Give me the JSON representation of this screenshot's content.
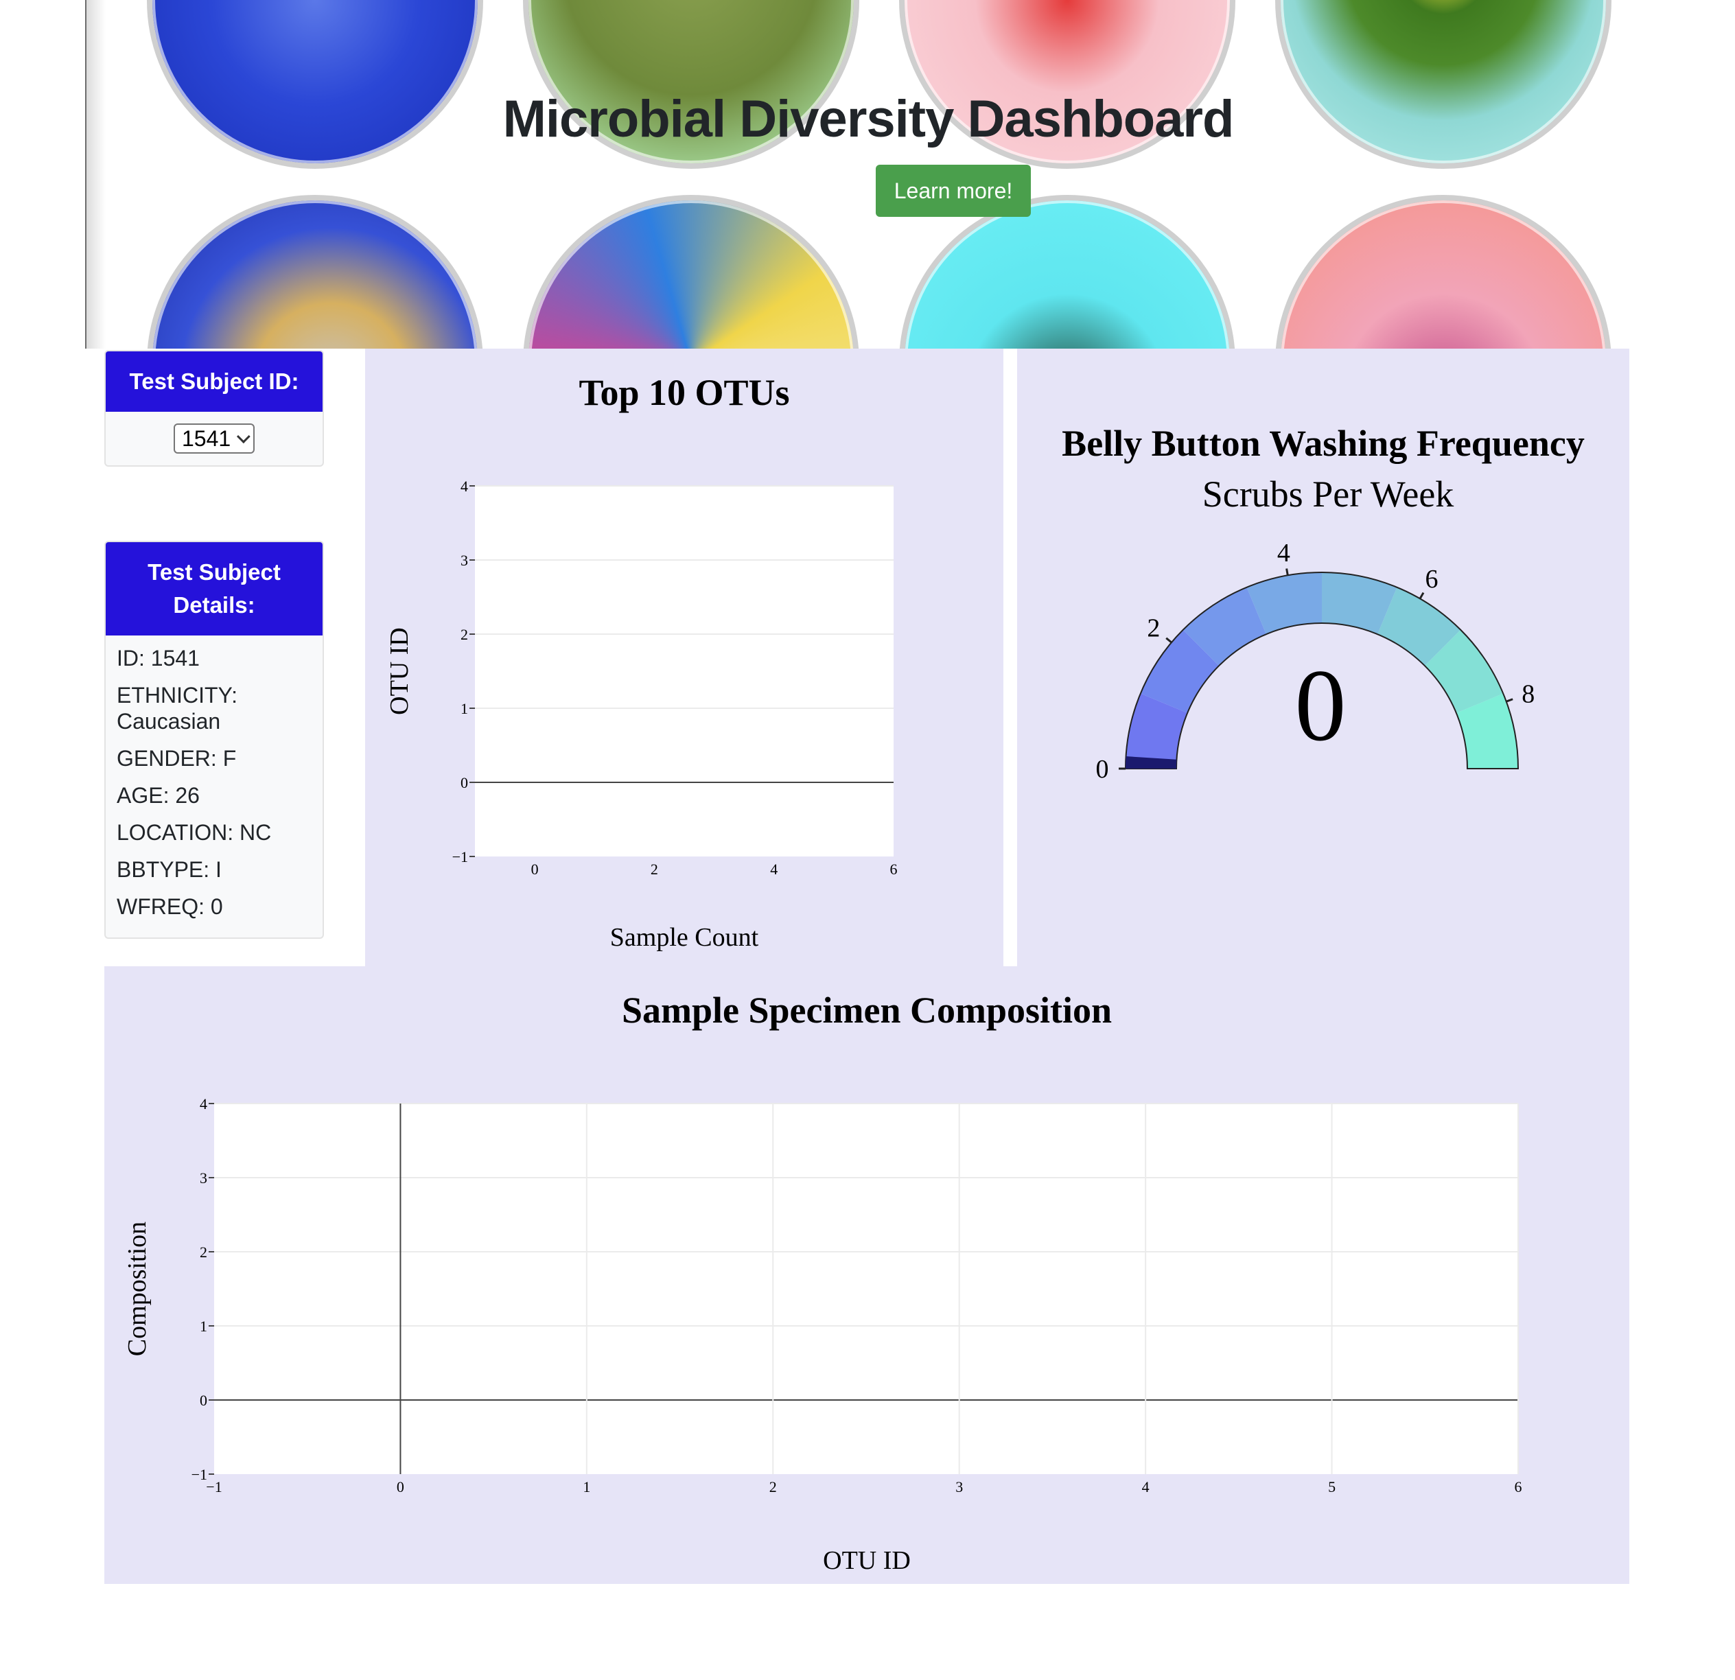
{
  "hero": {
    "title": "Microbial Diversity Dashboard",
    "button_label": "Learn more!"
  },
  "selector": {
    "heading": "Test Subject ID:",
    "selected": "1541"
  },
  "details": {
    "heading": "Test Subject Details:",
    "rows": [
      "ID: 1541",
      "ETHNICITY: Caucasian",
      "GENDER: F",
      "AGE: 26",
      "LOCATION: NC",
      "BBTYPE: I",
      "WFREQ: 0"
    ]
  },
  "colors": {
    "card_header": "#2512da",
    "panel_bg": "#e6e4f7",
    "button": "#4a9f4c",
    "gauge_bands": [
      "#6f78f0",
      "#7087ef",
      "#7598ec",
      "#79a9e6",
      "#7ebadf",
      "#81ccd9",
      "#84e0d6",
      "#7fefd8"
    ]
  },
  "chart_data": [
    {
      "type": "bar",
      "title": "Top 10 OTUs",
      "xlabel": "Sample Count",
      "ylabel": "OTU ID",
      "xlim": [
        -1,
        6
      ],
      "ylim": [
        -1,
        4
      ],
      "xticks": [
        "0",
        "2",
        "4",
        "6"
      ],
      "yticks": [
        "−1",
        "0",
        "1",
        "2",
        "3",
        "4"
      ],
      "series": []
    },
    {
      "type": "gauge",
      "title": "Belly Button Washing Frequency",
      "subtitle": "Scrubs Per Week",
      "range": [
        0,
        9
      ],
      "ticks": [
        "0",
        "2",
        "4",
        "6",
        "8"
      ],
      "value": 0,
      "value_label": "0"
    },
    {
      "type": "scatter",
      "title": "Sample Specimen Composition",
      "xlabel": "OTU ID",
      "ylabel": "Composition",
      "xlim": [
        -1,
        6
      ],
      "ylim": [
        -1,
        4
      ],
      "xticks": [
        "−1",
        "0",
        "1",
        "2",
        "3",
        "4",
        "5",
        "6"
      ],
      "yticks": [
        "−1",
        "0",
        "1",
        "2",
        "3",
        "4"
      ],
      "series": []
    }
  ]
}
